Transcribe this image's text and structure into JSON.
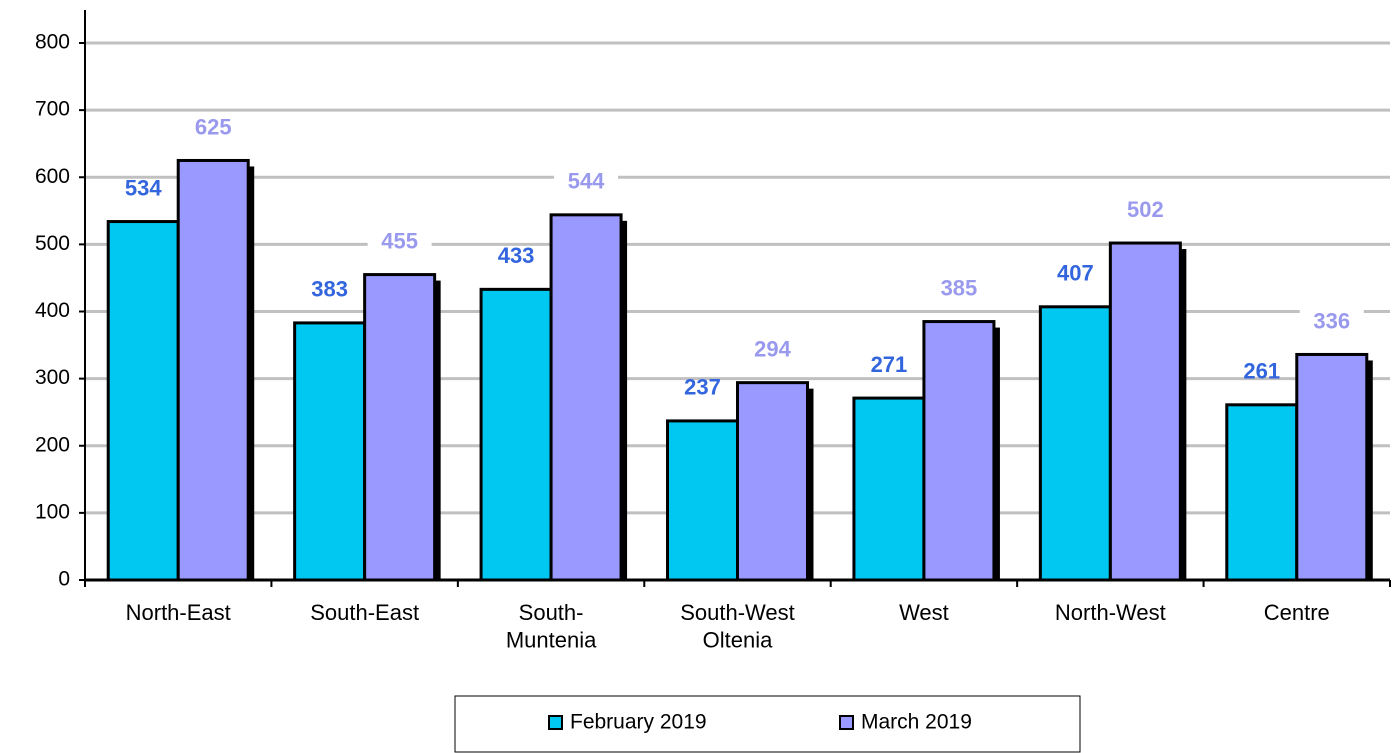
{
  "chart_data": {
    "type": "bar",
    "categories": [
      "North-East",
      "South-East",
      "South-\nMuntenia",
      "South-West\nOltenia",
      "West",
      "North-West",
      "Centre"
    ],
    "series": [
      {
        "name": "February 2019",
        "color": "#00c8f0",
        "label_color": "#3366dd",
        "values": [
          534,
          383,
          433,
          237,
          271,
          407,
          261
        ]
      },
      {
        "name": "March 2019",
        "color": "#9999ff",
        "label_color": "#9999ee",
        "values": [
          625,
          455,
          544,
          294,
          385,
          502,
          336
        ]
      }
    ],
    "ylim": [
      0,
      800
    ],
    "yticks": [
      0,
      100,
      200,
      300,
      400,
      500,
      600,
      700,
      800
    ],
    "grid": true,
    "legend": "bottom"
  }
}
